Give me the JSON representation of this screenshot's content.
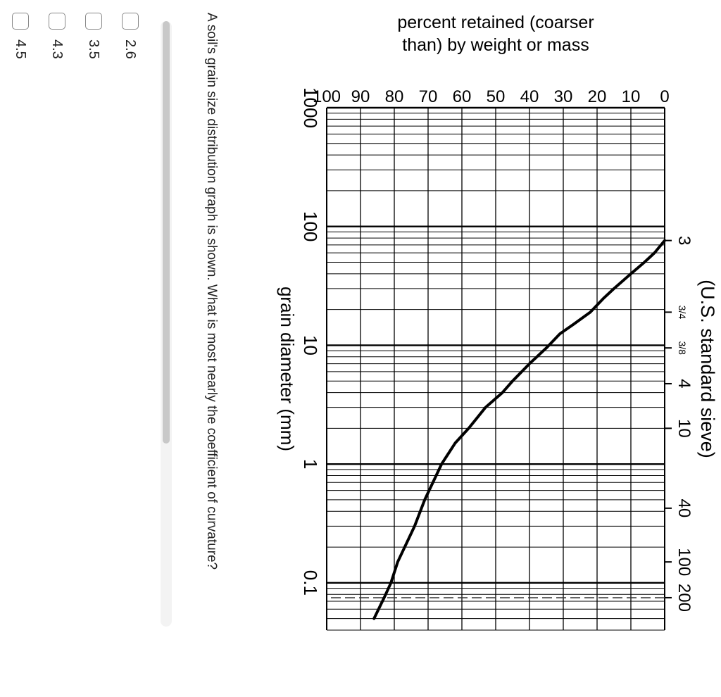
{
  "chart_data": {
    "type": "line",
    "title": "",
    "xlabel": "grain diameter (mm)",
    "ylabel": "percent retained (coarser than) by weight or mass",
    "top_axis_label": "(U.S. standard sieve)",
    "x_scale": "log",
    "x_reversed": true,
    "xlim": [
      1000,
      0.04
    ],
    "ylim": [
      0,
      100
    ],
    "x_ticks": [
      {
        "v": 1000,
        "label": "1000"
      },
      {
        "v": 100,
        "label": "100"
      },
      {
        "v": 10,
        "label": "10"
      },
      {
        "v": 1,
        "label": "1"
      },
      {
        "v": 0.1,
        "label": "0.1"
      }
    ],
    "y_ticks": [
      0,
      10,
      20,
      30,
      40,
      50,
      60,
      70,
      80,
      90,
      100
    ],
    "sieves": [
      {
        "label": "3",
        "size": 76.2
      },
      {
        "label": "3/4",
        "size": 19.0
      },
      {
        "label": "3/8",
        "size": 9.5
      },
      {
        "label": "4",
        "size": 4.75
      },
      {
        "label": "10",
        "size": 2.0
      },
      {
        "label": "40",
        "size": 0.425
      },
      {
        "label": "100",
        "size": 0.15
      },
      {
        "label": "200",
        "size": 0.075
      }
    ],
    "dashed_x": 0.075,
    "series": [
      {
        "x": [
          76.2,
          60,
          50,
          40,
          30,
          25,
          19,
          15,
          12.5,
          9.5,
          7,
          5,
          4,
          3,
          2,
          1.5,
          1,
          0.5,
          0.3,
          0.15,
          0.1,
          0.075,
          0.05
        ],
        "y": [
          0,
          3,
          6,
          10,
          15,
          18,
          22,
          27,
          31,
          35,
          40,
          45,
          48,
          53,
          58,
          62,
          66,
          71,
          74,
          79,
          81,
          83,
          86
        ]
      }
    ]
  },
  "question": {
    "text": "A soil's grain size distribution graph is shown. What is most nearly the coefficient of curvature?"
  },
  "options": [
    {
      "label": "2.6"
    },
    {
      "label": "3.5"
    },
    {
      "label": "4.3"
    },
    {
      "label": "4.5"
    }
  ]
}
